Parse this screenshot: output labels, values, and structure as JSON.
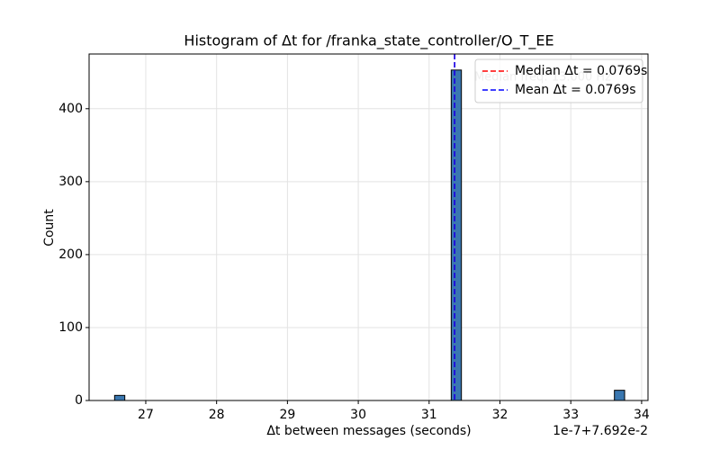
{
  "chart_data": {
    "type": "histogram",
    "title": "Histogram of Δt for /franka_state_controller/O_T_EE",
    "x_label": "Δt between messages (seconds)",
    "y_label": "Count",
    "x_offset_label": "1e-7+7.692e-2",
    "bins": [
      26.56,
      26.704,
      26.848,
      26.992,
      27.136,
      27.28,
      27.424,
      27.568,
      27.712,
      27.856,
      28.0,
      28.144,
      28.288,
      28.432,
      28.576,
      28.72,
      28.864,
      29.008,
      29.152,
      29.296,
      29.44,
      29.584,
      29.728,
      29.872,
      30.016,
      30.16,
      30.304,
      30.448,
      30.592,
      30.736,
      30.88,
      31.024,
      31.168,
      31.312,
      31.456,
      31.6,
      31.744,
      31.888,
      32.032,
      32.176,
      32.32,
      32.464,
      32.608,
      32.752,
      32.896,
      33.04,
      33.184,
      33.328,
      33.472,
      33.616,
      33.76
    ],
    "counts": [
      7,
      0,
      0,
      0,
      0,
      0,
      0,
      0,
      0,
      0,
      0,
      0,
      0,
      0,
      0,
      0,
      0,
      0,
      0,
      0,
      0,
      0,
      0,
      0,
      0,
      0,
      0,
      0,
      0,
      0,
      0,
      0,
      0,
      453,
      0,
      0,
      0,
      0,
      0,
      0,
      0,
      0,
      0,
      0,
      0,
      0,
      0,
      0,
      0,
      14
    ],
    "color": "#3a77b0",
    "edge_color": "#000000",
    "xlim": [
      26.2,
      34.09
    ],
    "ylim": [
      0,
      475
    ],
    "xticks": [
      27,
      28,
      29,
      30,
      31,
      32,
      33,
      34
    ],
    "yticks": [
      0,
      100,
      200,
      300,
      400
    ],
    "grid": true,
    "vlines": [
      {
        "name": "Median Δt = 0.0769s",
        "value": 31.36,
        "color": "#ff0000"
      },
      {
        "name": "Mean Δt = 0.0769s",
        "value": 31.36,
        "color": "#0000ff"
      }
    ],
    "annotation": "Median freq: 13.000 Hz",
    "legend": "upper right"
  }
}
